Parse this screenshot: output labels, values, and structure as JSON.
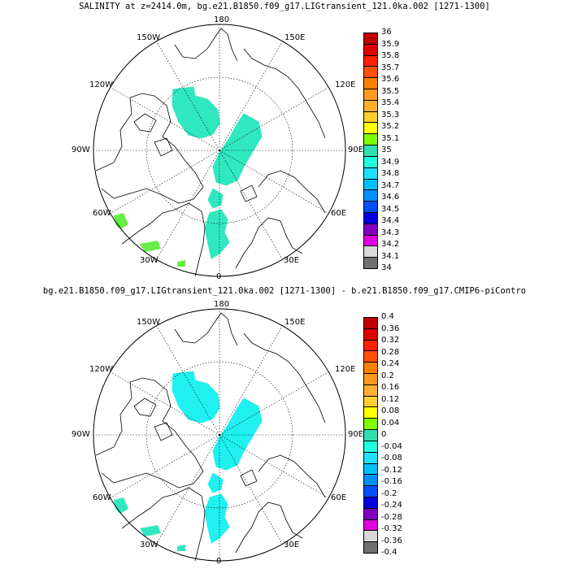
{
  "panels": [
    {
      "title": "SALINITY at z=2414.0m, bg.e21.B1850.f09_g17.LIGtransient_121.0ka.002 [1271-1300]",
      "colorbar": {
        "labels": [
          "36",
          "35.9",
          "35.8",
          "35.7",
          "35.6",
          "35.5",
          "35.4",
          "35.3",
          "35.2",
          "35.1",
          "35",
          "34.9",
          "34.8",
          "34.7",
          "34.6",
          "34.5",
          "34.4",
          "34.3",
          "34.2",
          "34.1",
          "34"
        ],
        "colors": [
          "#c00000",
          "#e00000",
          "#ff2000",
          "#ff5000",
          "#ff8000",
          "#ff9a20",
          "#ffb030",
          "#ffd030",
          "#ffff00",
          "#80ff00",
          "#40e000",
          "#30e0b0",
          "#20ffe0",
          "#20e0ff",
          "#00c0ff",
          "#0090ff",
          "#0050ff",
          "#0000e0",
          "#8000c0",
          "#e000e0",
          "#d8d8d8",
          "#707070"
        ]
      },
      "field_color": "#30e8c0",
      "field_color_high": "#66ee44"
    },
    {
      "title": "bg.e21.B1850.f09_g17.LIGtransient_121.0ka.002 [1271-1300] - b.e21.B1850.f09_g17.CMIP6-piContro",
      "colorbar": {
        "labels": [
          "0.4",
          "0.36",
          "0.32",
          "0.28",
          "0.24",
          "0.2",
          "0.16",
          "0.12",
          "0.08",
          "0.04",
          "0",
          "-0.04",
          "-0.08",
          "-0.12",
          "-0.16",
          "-0.2",
          "-0.24",
          "-0.28",
          "-0.32",
          "-0.36",
          "-0.4"
        ],
        "colors": [
          "#c00000",
          "#e00000",
          "#ff2000",
          "#ff5000",
          "#ff8000",
          "#ff9a20",
          "#ffb030",
          "#ffd030",
          "#ffff00",
          "#80ff00",
          "#40e000",
          "#30e0b0",
          "#20ffe0",
          "#20e0ff",
          "#00c0ff",
          "#0090ff",
          "#0050ff",
          "#0000e0",
          "#8000c0",
          "#e000e0",
          "#d8d8d8",
          "#707070"
        ]
      },
      "field_color": "#20f0f0",
      "field_color_high": "#30e8c0"
    }
  ],
  "longitude_labels": {
    "top": "180",
    "bottom": "0",
    "left": "90W",
    "right": "90E",
    "upper_left_1": "150W",
    "upper_left_2": "120W",
    "upper_right_1": "150E",
    "upper_right_2": "120E",
    "lower_left_1": "60W",
    "lower_left_2": "30W",
    "lower_right_1": "60E",
    "lower_right_2": "30E"
  }
}
